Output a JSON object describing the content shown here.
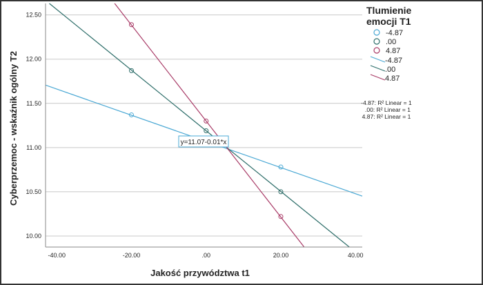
{
  "chart_data": {
    "type": "scatter",
    "xlabel": "Jakość przywództwa t1",
    "ylabel": "Cyberprzemoc - wskaźnik ogólny T2",
    "xlim": [
      -43,
      41.8
    ],
    "ylim": [
      9.875,
      12.63
    ],
    "xticks": [
      -40,
      -20,
      0,
      20,
      40
    ],
    "xtick_labels": [
      "-40.00",
      "-20.00",
      ".00",
      "20.00",
      "40.00"
    ],
    "yticks": [
      10.0,
      10.5,
      11.0,
      11.5,
      12.0,
      12.5
    ],
    "ytick_labels": [
      "10.00",
      "10.50",
      "11.00",
      "11.50",
      "12.00",
      "12.50"
    ],
    "grid": "horizontal",
    "legend": {
      "title": "Tlumienie emocji T1",
      "placement": "right",
      "marker_labels": [
        "-4.87",
        ".00",
        "4.87"
      ],
      "line_labels": [
        "-4.87",
        ".00",
        "4.87"
      ],
      "r2_labels": [
        "-4.87: R² Linear = 1",
        ".00: R² Linear = 1",
        "4.87: R² Linear = 1"
      ]
    },
    "annotation": "y=11.07-0.01*x",
    "series": [
      {
        "name": "-4.87",
        "color": "#4aa8d4",
        "intercept": 11.07,
        "slope": -0.0148,
        "points": [
          [
            -20,
            11.37
          ],
          [
            0,
            11.07
          ],
          [
            20,
            10.78
          ]
        ]
      },
      {
        "name": ".00",
        "color": "#2e6e6a",
        "intercept": 11.19,
        "slope": -0.0343,
        "points": [
          [
            -20,
            11.87
          ],
          [
            0,
            11.19
          ],
          [
            20,
            10.5
          ]
        ]
      },
      {
        "name": "4.87",
        "color": "#a83a66",
        "intercept": 11.3,
        "slope": -0.0543,
        "points": [
          [
            -20,
            12.39
          ],
          [
            0,
            11.3
          ],
          [
            20,
            10.22
          ]
        ]
      }
    ]
  }
}
